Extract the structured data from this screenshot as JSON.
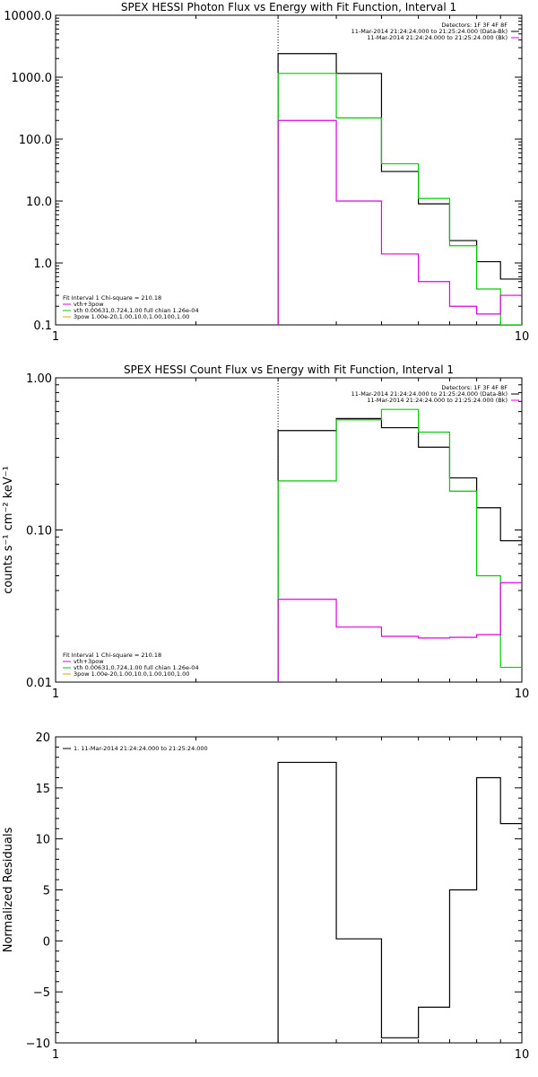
{
  "chart_data": [
    {
      "type": "line",
      "title": "SPEX HESSI Photon Flux vs Energy with Fit Function, Interval 1",
      "xscale": "log",
      "yscale": "log",
      "xlim": [
        1,
        10
      ],
      "ylim": [
        0.1,
        10000
      ],
      "xticks": [
        "1",
        "10"
      ],
      "yticks": [
        "10000.0",
        "1000.0",
        "100.0",
        "10.0",
        "1.0",
        "0.1"
      ],
      "marker_x": 3,
      "legend_right": [
        {
          "text": "Detectors: 1F 3F 4F 8F",
          "color": "#000000"
        },
        {
          "text": "11-Mar-2014 21:24:24.000 to 21:25:24.000 (Data-Bk)",
          "color": "#000000"
        },
        {
          "text": "11-Mar-2014 21:24:24.000 to 21:25:24.000 (Bk)",
          "color": "#e000e0"
        }
      ],
      "legend_left": [
        {
          "text": "Fit Interval 1   Chi-square = 210.18",
          "color": "#000000"
        },
        {
          "text": "vth+3pow",
          "color": "#e000e0"
        },
        {
          "text": "vth 0.00631,0.724,1.00  full chian 1.26e-04",
          "color": "#00cc00"
        },
        {
          "text": "3pow 1.00e-20,1.00,10.0,1.00,100,1.00",
          "color": "#e8a000"
        }
      ],
      "edges": [
        3,
        4,
        5,
        6,
        7,
        8,
        9,
        10
      ],
      "series": [
        {
          "color": "#000000",
          "values": [
            2400,
            1150,
            30,
            9,
            2.3,
            1.05,
            0.55
          ]
        },
        {
          "color": "#00cc00",
          "values": [
            1150,
            220,
            40,
            11,
            1.9,
            0.38,
            0.1
          ]
        },
        {
          "color": "#e000e0",
          "values": [
            200,
            10,
            1.4,
            0.5,
            0.2,
            0.15,
            0.3
          ]
        }
      ]
    },
    {
      "type": "line",
      "title": "SPEX HESSI Count Flux vs Energy with Fit Function, Interval 1",
      "ylabel": "counts s⁻¹ cm⁻² keV⁻¹",
      "xscale": "log",
      "yscale": "log",
      "xlim": [
        1,
        10
      ],
      "ylim": [
        0.01,
        1
      ],
      "xticks": [
        "1",
        "10"
      ],
      "yticks": [
        "1.00",
        "0.10",
        "0.01"
      ],
      "marker_x": 3,
      "legend_right": [
        {
          "text": "Detectors: 1F 3F 4F 8F",
          "color": "#000000"
        },
        {
          "text": "11-Mar-2014 21:24:24.000 to 21:25:24.000 (Data-Bk)",
          "color": "#000000"
        },
        {
          "text": "11-Mar-2014 21:24:24.000 to 21:25:24.000 (Bk)",
          "color": "#e000e0"
        }
      ],
      "legend_left": [
        {
          "text": "Fit Interval 1   Chi-square = 210.18",
          "color": "#000000"
        },
        {
          "text": "vth+3pow",
          "color": "#e000e0"
        },
        {
          "text": "vth 0.00631,0.724,1.00  full chian 1.26e-04",
          "color": "#00cc00"
        },
        {
          "text": "3pow 1.00e-20,1.00,10.0,1.00,100,1.00",
          "color": "#e8a000"
        }
      ],
      "edges": [
        3,
        4,
        5,
        6,
        7,
        8,
        9,
        10
      ],
      "series": [
        {
          "color": "#000000",
          "values": [
            0.45,
            0.54,
            0.47,
            0.35,
            0.22,
            0.14,
            0.085
          ]
        },
        {
          "color": "#00cc00",
          "values": [
            0.21,
            0.53,
            0.62,
            0.44,
            0.18,
            0.05,
            0.0125
          ]
        },
        {
          "color": "#e000e0",
          "values": [
            0.035,
            0.023,
            0.02,
            0.0195,
            0.0197,
            0.0205,
            0.045
          ]
        }
      ]
    },
    {
      "type": "line",
      "title": "",
      "ylabel": "Normalized Residuals",
      "xscale": "log",
      "yscale": "linear",
      "xlim": [
        1,
        10
      ],
      "ylim": [
        -10,
        20
      ],
      "xticks": [
        "1",
        "10"
      ],
      "yticks": [
        "20",
        "15",
        "10",
        "5",
        "0",
        "−5",
        "−10"
      ],
      "legend_left": [
        {
          "text": "1. 11-Mar-2014 21:24:24.000 to 21:25:24.000",
          "color": "#000000"
        }
      ],
      "edges": [
        3,
        4,
        5,
        6,
        7,
        8,
        9,
        10
      ],
      "series": [
        {
          "color": "#000000",
          "values": [
            17.5,
            0.2,
            -9.5,
            -6.5,
            5,
            16,
            11.5
          ]
        }
      ]
    }
  ]
}
